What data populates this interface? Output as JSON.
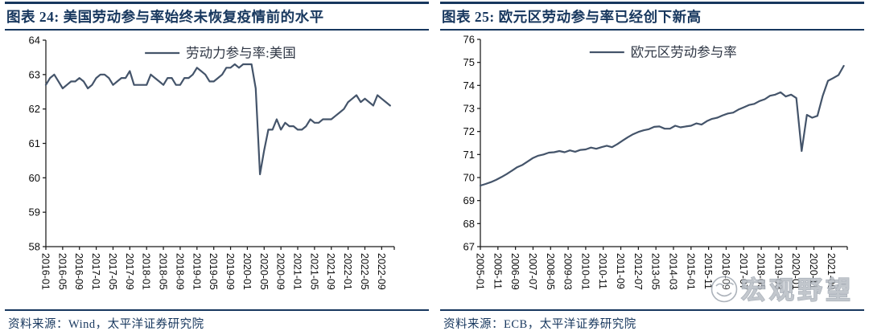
{
  "colors": {
    "accent": "#17375E",
    "series": "#44546A",
    "axis": "#1a1a1a",
    "watermark_gray": "#98a0aa"
  },
  "watermark": {
    "text": "宏观野望",
    "icon": "smiley-face-icon"
  },
  "panels": [
    {
      "source": "资料来源：Wind，太平洋证券研究院"
    },
    {
      "source": "资料来源：ECB，太平洋证券研究院"
    }
  ],
  "chart_data": [
    {
      "type": "line",
      "title": "图表 24: 美国劳动参与率始终未恢复疫情前的水平",
      "legend_entries": [
        "劳动力参与率:美国"
      ],
      "legend_position": "top-center",
      "grid": false,
      "ylim": [
        58,
        64
      ],
      "y_tick_step": 1,
      "x_tick_labels": [
        "2016-01",
        "2016-05",
        "2016-09",
        "2017-01",
        "2017-05",
        "2017-09",
        "2018-01",
        "2018-05",
        "2018-09",
        "2019-01",
        "2019-05",
        "2019-09",
        "2020-01",
        "2020-05",
        "2020-09",
        "2021-01",
        "2021-05",
        "2021-09",
        "2022-01",
        "2022-05",
        "2022-09"
      ],
      "x_tick_step_months": 4,
      "x_axis_total_months": 83,
      "series": [
        {
          "name": "劳动力参与率:美国",
          "color": "#44546A",
          "start": "2016-01",
          "step_months": 1,
          "values": [
            62.7,
            62.9,
            63.0,
            62.8,
            62.6,
            62.7,
            62.8,
            62.8,
            62.9,
            62.8,
            62.6,
            62.7,
            62.9,
            63.0,
            63.0,
            62.9,
            62.7,
            62.8,
            62.9,
            62.9,
            63.1,
            62.7,
            62.7,
            62.7,
            62.7,
            63.0,
            62.9,
            62.8,
            62.7,
            62.9,
            62.9,
            62.7,
            62.7,
            62.9,
            62.9,
            63.0,
            63.2,
            63.1,
            63.0,
            62.8,
            62.8,
            62.9,
            63.0,
            63.2,
            63.2,
            63.3,
            63.2,
            63.3,
            63.3,
            63.3,
            62.6,
            60.1,
            60.8,
            61.4,
            61.4,
            61.7,
            61.4,
            61.6,
            61.5,
            61.5,
            61.4,
            61.4,
            61.5,
            61.7,
            61.6,
            61.6,
            61.7,
            61.7,
            61.7,
            61.8,
            61.9,
            62.0,
            62.2,
            62.3,
            62.4,
            62.2,
            62.3,
            62.2,
            62.1,
            62.4,
            62.3,
            62.2,
            62.1
          ]
        }
      ]
    },
    {
      "type": "line",
      "title": "图表 25: 欧元区劳动参与率已经创下新高",
      "legend_entries": [
        "欧元区劳动参与率"
      ],
      "legend_position": "top-center",
      "grid": false,
      "ylim": [
        67,
        76
      ],
      "y_tick_step": 1,
      "x_tick_labels": [
        "2005-01",
        "2005-11",
        "2006-09",
        "2007-07",
        "2008-05",
        "2009-03",
        "2010-01",
        "2010-11",
        "2011-09",
        "2012-07",
        "2013-05",
        "2014-03",
        "2015-01",
        "2015-11",
        "2016-09",
        "2017-07",
        "2018-05",
        "2019-03",
        "2020-01",
        "2020-11",
        "2021-09"
      ],
      "x_tick_step_months": 10,
      "x_axis_total_months": 209,
      "series": [
        {
          "name": "欧元区劳动参与率",
          "color": "#44546A",
          "start": "2005-01",
          "step_months": 3,
          "values": [
            69.65,
            69.72,
            69.8,
            69.9,
            70.02,
            70.15,
            70.3,
            70.45,
            70.55,
            70.7,
            70.85,
            70.95,
            71.0,
            71.08,
            71.1,
            71.15,
            71.1,
            71.18,
            71.12,
            71.2,
            71.22,
            71.3,
            71.25,
            71.32,
            71.38,
            71.32,
            71.45,
            71.6,
            71.75,
            71.88,
            71.98,
            72.05,
            72.1,
            72.2,
            72.22,
            72.12,
            72.12,
            72.25,
            72.18,
            72.22,
            72.25,
            72.35,
            72.3,
            72.45,
            72.55,
            72.6,
            72.7,
            72.78,
            72.82,
            72.95,
            73.05,
            73.15,
            73.2,
            73.32,
            73.4,
            73.55,
            73.6,
            73.7,
            73.52,
            73.6,
            73.45,
            71.15,
            72.72,
            72.6,
            72.68,
            73.55,
            74.2,
            74.32,
            74.45,
            74.85
          ]
        }
      ]
    }
  ]
}
